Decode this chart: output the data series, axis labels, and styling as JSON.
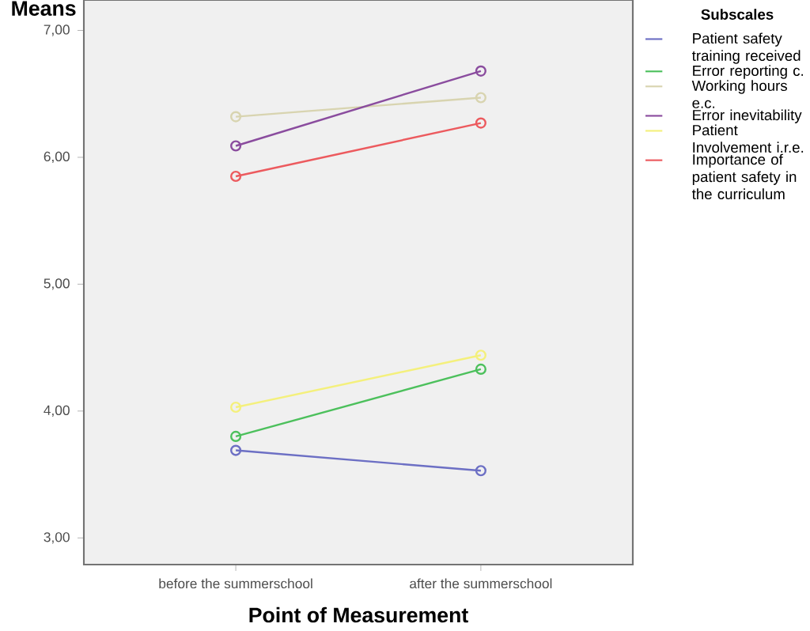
{
  "chart_data": {
    "type": "line",
    "ylabel": "Means",
    "xlabel": "Point of Measurement",
    "legend_title": "Subscales",
    "categories": [
      "before the summerschool",
      "after the summerschool"
    ],
    "series": [
      {
        "name": "Patient safety training received",
        "color": "#6c6fc4",
        "values": [
          3.69,
          3.53
        ]
      },
      {
        "name": "Error reporting c.",
        "color": "#4cc05c",
        "values": [
          3.8,
          4.33
        ]
      },
      {
        "name": "Working hours e.c.",
        "color": "#d8d4b0",
        "values": [
          6.32,
          6.47
        ]
      },
      {
        "name": "Error inevitability",
        "color": "#8a4c9e",
        "values": [
          6.09,
          6.68
        ]
      },
      {
        "name": "Patient Involvement i.r.e.",
        "color": "#f4f07c",
        "values": [
          4.03,
          4.44
        ]
      },
      {
        "name": "Importance of patient safety in the curriculum",
        "color": "#ec5a5e",
        "values": [
          5.85,
          6.27
        ]
      }
    ],
    "ylim": [
      2.79,
      7.24
    ],
    "yticks": [
      {
        "value": 3,
        "label": "3,00"
      },
      {
        "value": 4,
        "label": "4,00"
      },
      {
        "value": 5,
        "label": "5,00"
      },
      {
        "value": 6,
        "label": "6,00"
      },
      {
        "value": 7,
        "label": "7,00"
      }
    ],
    "marker": "circle",
    "line_style": "solid",
    "legend": "right",
    "grid": false
  }
}
